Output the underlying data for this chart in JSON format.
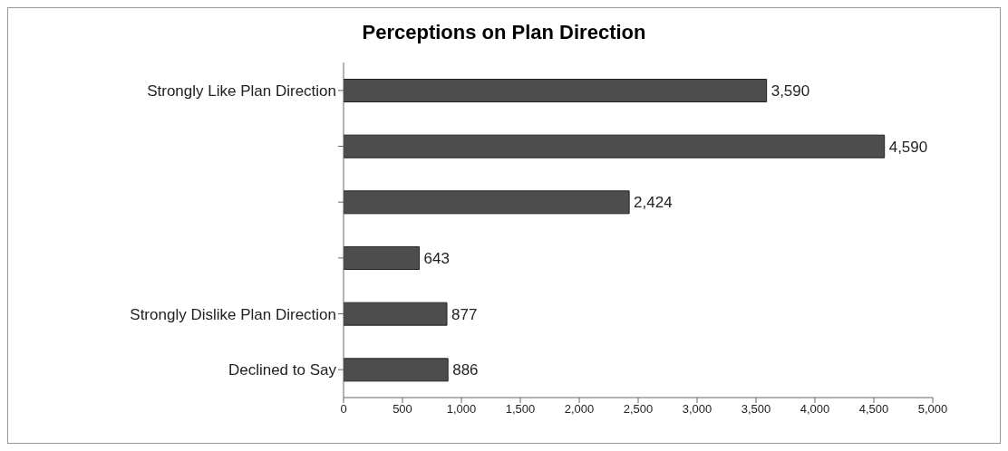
{
  "chart_data": {
    "type": "bar",
    "orientation": "horizontal",
    "title": "Perceptions on Plan Direction",
    "categories": [
      "Strongly Like Plan Direction",
      null,
      null,
      null,
      "Strongly Dislike Plan Direction",
      "Declined to Say"
    ],
    "values": [
      3590,
      4590,
      2424,
      643,
      877,
      886
    ],
    "value_labels": [
      "3,590",
      "4,590",
      "2,424",
      "643",
      "877",
      "886"
    ],
    "color": "#4d4d4d",
    "xlim": [
      0,
      5000
    ],
    "xticks": [
      0,
      500,
      {
        "value": 1000,
        "label": "1,000"
      },
      {
        "value": 1500,
        "label": "1,500"
      },
      {
        "value": 2000,
        "label": "2,000"
      },
      {
        "value": 2500,
        "label": "2,500"
      },
      {
        "value": 3000,
        "label": "3,000"
      },
      {
        "value": 3500,
        "label": "3,500"
      },
      {
        "value": 4000,
        "label": "4,000"
      },
      {
        "value": 4500,
        "label": "4,500"
      },
      {
        "value": 5000,
        "label": "5,000"
      }
    ],
    "xlabel": null
  }
}
